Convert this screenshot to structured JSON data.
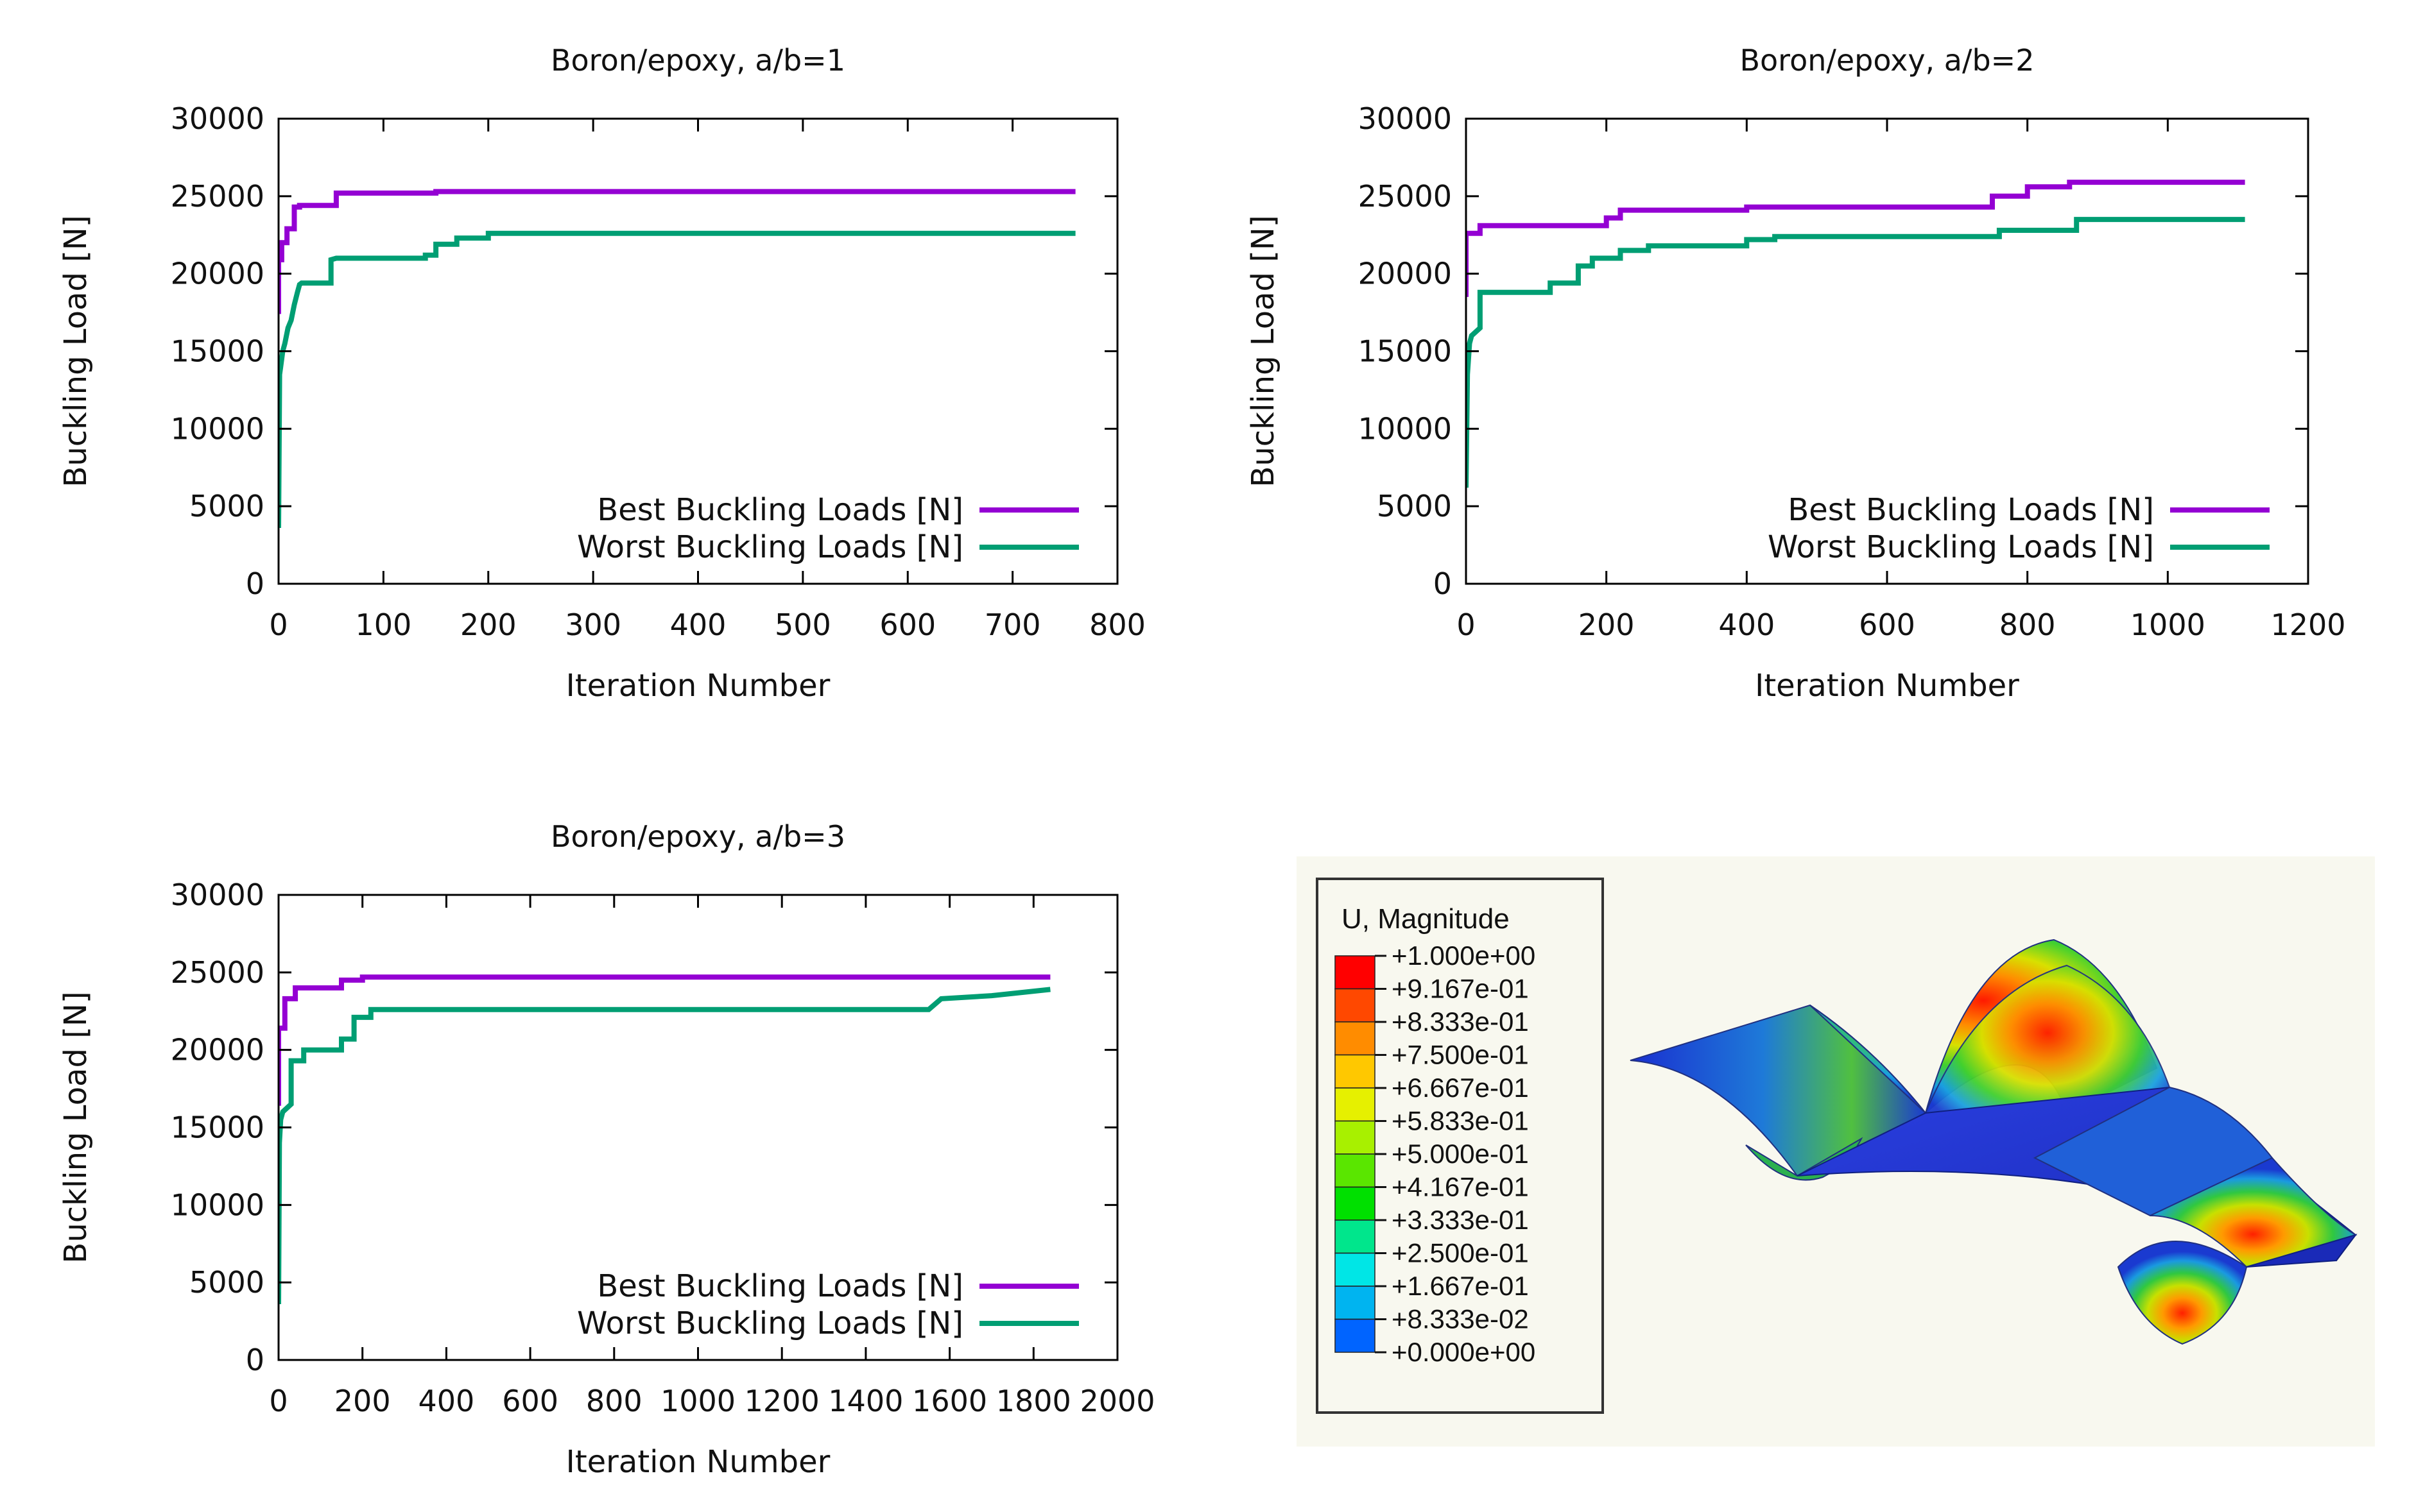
{
  "chart_data": [
    {
      "type": "line",
      "title": "Boron/epoxy, a/b=1",
      "xlabel": "Iteration Number",
      "ylabel": "Buckling Load [N]",
      "xlim": [
        0,
        800
      ],
      "ylim": [
        0,
        30000
      ],
      "xticks": [
        0,
        100,
        200,
        300,
        400,
        500,
        600,
        700,
        800
      ],
      "yticks": [
        0,
        5000,
        10000,
        15000,
        20000,
        25000,
        30000
      ],
      "grid": false,
      "legend": "bottom-right",
      "series": [
        {
          "name": "Best Buckling Loads [N]",
          "color": "#9400d3",
          "x": [
            0,
            0,
            3,
            3,
            8,
            8,
            15,
            15,
            20,
            20,
            55,
            55,
            150,
            150,
            760
          ],
          "y": [
            17400,
            20900,
            20900,
            22000,
            22000,
            22900,
            22900,
            24300,
            24300,
            24400,
            24400,
            25200,
            25200,
            25300,
            25300
          ]
        },
        {
          "name": "Worst Buckling Loads [N]",
          "color": "#009e73",
          "x": [
            0,
            1,
            2,
            4,
            6,
            9,
            12,
            15,
            18,
            20,
            22,
            25,
            50,
            50,
            55,
            140,
            140,
            150,
            150,
            170,
            170,
            200,
            200,
            760
          ],
          "y": [
            3600,
            13500,
            14000,
            15000,
            15500,
            16500,
            17000,
            18000,
            18800,
            19300,
            19400,
            19400,
            19400,
            20900,
            21000,
            21000,
            21200,
            21200,
            21900,
            21900,
            22300,
            22300,
            22600,
            22600
          ]
        }
      ]
    },
    {
      "type": "line",
      "title": "Boron/epoxy, a/b=2",
      "xlabel": "Iteration Number",
      "ylabel": "Buckling Load [N]",
      "xlim": [
        0,
        1200
      ],
      "ylim": [
        0,
        30000
      ],
      "xticks": [
        0,
        200,
        400,
        600,
        800,
        1000,
        1200
      ],
      "yticks": [
        0,
        5000,
        10000,
        15000,
        20000,
        25000,
        30000
      ],
      "grid": false,
      "legend": "bottom-right",
      "series": [
        {
          "name": "Best Buckling Loads [N]",
          "color": "#9400d3",
          "x": [
            0,
            0,
            20,
            20,
            200,
            200,
            220,
            220,
            400,
            400,
            750,
            750,
            800,
            800,
            860,
            860,
            1110
          ],
          "y": [
            18500,
            22600,
            22600,
            23100,
            23100,
            23600,
            23600,
            24100,
            24100,
            24300,
            24300,
            25000,
            25000,
            25600,
            25600,
            25900,
            25900
          ]
        },
        {
          "name": "Worst Buckling Loads [N]",
          "color": "#009e73",
          "x": [
            0,
            2,
            5,
            8,
            8,
            20,
            20,
            120,
            120,
            160,
            160,
            180,
            180,
            220,
            220,
            260,
            260,
            400,
            400,
            440,
            440,
            760,
            760,
            870,
            870,
            1110
          ],
          "y": [
            6200,
            13500,
            15500,
            16000,
            16000,
            16500,
            18800,
            18800,
            19400,
            19400,
            20500,
            20500,
            21000,
            21000,
            21500,
            21500,
            21800,
            21800,
            22200,
            22200,
            22400,
            22400,
            22800,
            22800,
            23500,
            23500
          ]
        }
      ]
    },
    {
      "type": "line",
      "title": "Boron/epoxy, a/b=3",
      "xlabel": "Iteration Number",
      "ylabel": "Buckling Load [N]",
      "xlim": [
        0,
        2000
      ],
      "ylim": [
        0,
        30000
      ],
      "xticks": [
        0,
        200,
        400,
        600,
        800,
        1000,
        1200,
        1400,
        1600,
        1800,
        2000
      ],
      "yticks": [
        0,
        5000,
        10000,
        15000,
        20000,
        25000,
        30000
      ],
      "grid": false,
      "legend": "bottom-right",
      "series": [
        {
          "name": "Best Buckling Loads [N]",
          "color": "#9400d3",
          "x": [
            0,
            0,
            15,
            15,
            40,
            40,
            150,
            150,
            200,
            200,
            1840
          ],
          "y": [
            16400,
            21400,
            21400,
            23300,
            23300,
            24000,
            24000,
            24500,
            24500,
            24700,
            24700
          ]
        },
        {
          "name": "Worst Buckling Loads [N]",
          "color": "#009e73",
          "x": [
            0,
            2,
            5,
            10,
            10,
            30,
            30,
            60,
            60,
            150,
            150,
            180,
            180,
            220,
            220,
            1550,
            1580,
            1580,
            1700,
            1700,
            1840
          ],
          "y": [
            3600,
            14000,
            15500,
            16000,
            16000,
            16500,
            19300,
            19300,
            20000,
            20000,
            20700,
            20700,
            22100,
            22100,
            22600,
            22600,
            23300,
            23300,
            23500,
            23500,
            23900
          ]
        }
      ]
    }
  ],
  "fea": {
    "legend_title": "U, Magnitude",
    "labels": [
      "+1.000e+00",
      "+9.167e-01",
      "+8.333e-01",
      "+7.500e-01",
      "+6.667e-01",
      "+5.833e-01",
      "+5.000e-01",
      "+4.167e-01",
      "+3.333e-01",
      "+2.500e-01",
      "+1.667e-01",
      "+8.333e-02",
      "+0.000e+00"
    ],
    "colors": [
      "#ff0000",
      "#ff4800",
      "#ff8c00",
      "#ffc800",
      "#e6f000",
      "#a8f000",
      "#5ae600",
      "#00e000",
      "#00e68c",
      "#00e6e6",
      "#00b4f0",
      "#0064ff",
      "#0000ff"
    ]
  }
}
